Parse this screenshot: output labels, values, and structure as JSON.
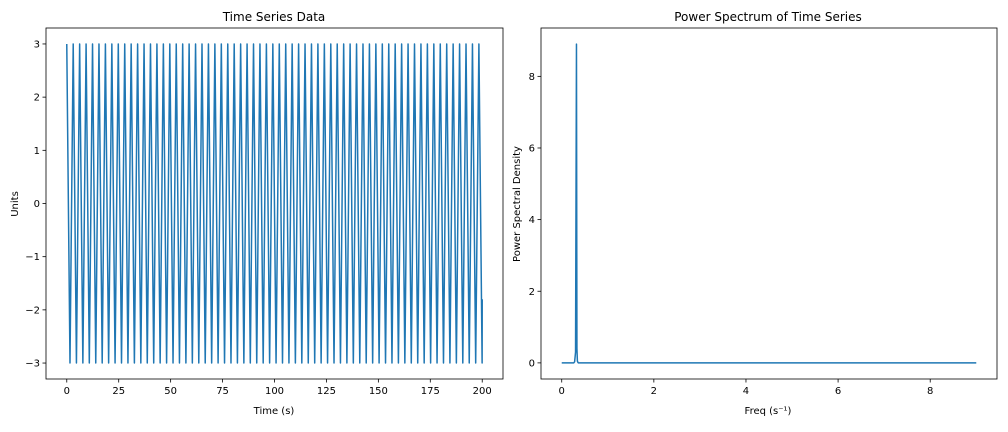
{
  "chart_data": [
    {
      "type": "line",
      "title": "Time Series Data",
      "xlabel": "Time (s)",
      "ylabel": "Units",
      "xlim": [
        -10,
        210
      ],
      "ylim": [
        -3.3,
        3.3
      ],
      "xticks": [
        0,
        25,
        50,
        75,
        100,
        125,
        150,
        175,
        200
      ],
      "xtick_labels": [
        "0",
        "25",
        "50",
        "75",
        "100",
        "125",
        "150",
        "175",
        "200"
      ],
      "yticks": [
        -3,
        -2,
        -1,
        0,
        1,
        2,
        3
      ],
      "ytick_labels": [
        "−3",
        "−2",
        "−1",
        "0",
        "1",
        "2",
        "3"
      ],
      "grid": false,
      "color": "#1f77b4",
      "series": [
        {
          "signal": "sine",
          "amplitude": 3.0,
          "period": 3.1,
          "phase_start": 3.0,
          "x": [
            0,
            200
          ],
          "end_value": -1.8
        }
      ]
    },
    {
      "type": "line",
      "title": "Power Spectrum of Time Series",
      "xlabel": "Freq (s⁻¹)",
      "ylabel": "Power Spectral Density",
      "xlim": [
        -0.45,
        9.45
      ],
      "ylim": [
        -0.45,
        9.35
      ],
      "xticks": [
        0,
        2,
        4,
        6,
        8
      ],
      "xtick_labels": [
        "0",
        "2",
        "4",
        "6",
        "8"
      ],
      "yticks": [
        0,
        2,
        4,
        6,
        8
      ],
      "ytick_labels": [
        "0",
        "2",
        "4",
        "6",
        "8"
      ],
      "grid": false,
      "color": "#1f77b4",
      "series": [
        {
          "x": [
            0,
            0.26,
            0.28,
            0.3,
            0.32,
            0.33,
            0.34,
            0.35,
            0.36,
            9.0
          ],
          "y": [
            0,
            0,
            0.03,
            0.3,
            8.9,
            0.4,
            0.05,
            0.02,
            0,
            0
          ]
        }
      ]
    }
  ]
}
